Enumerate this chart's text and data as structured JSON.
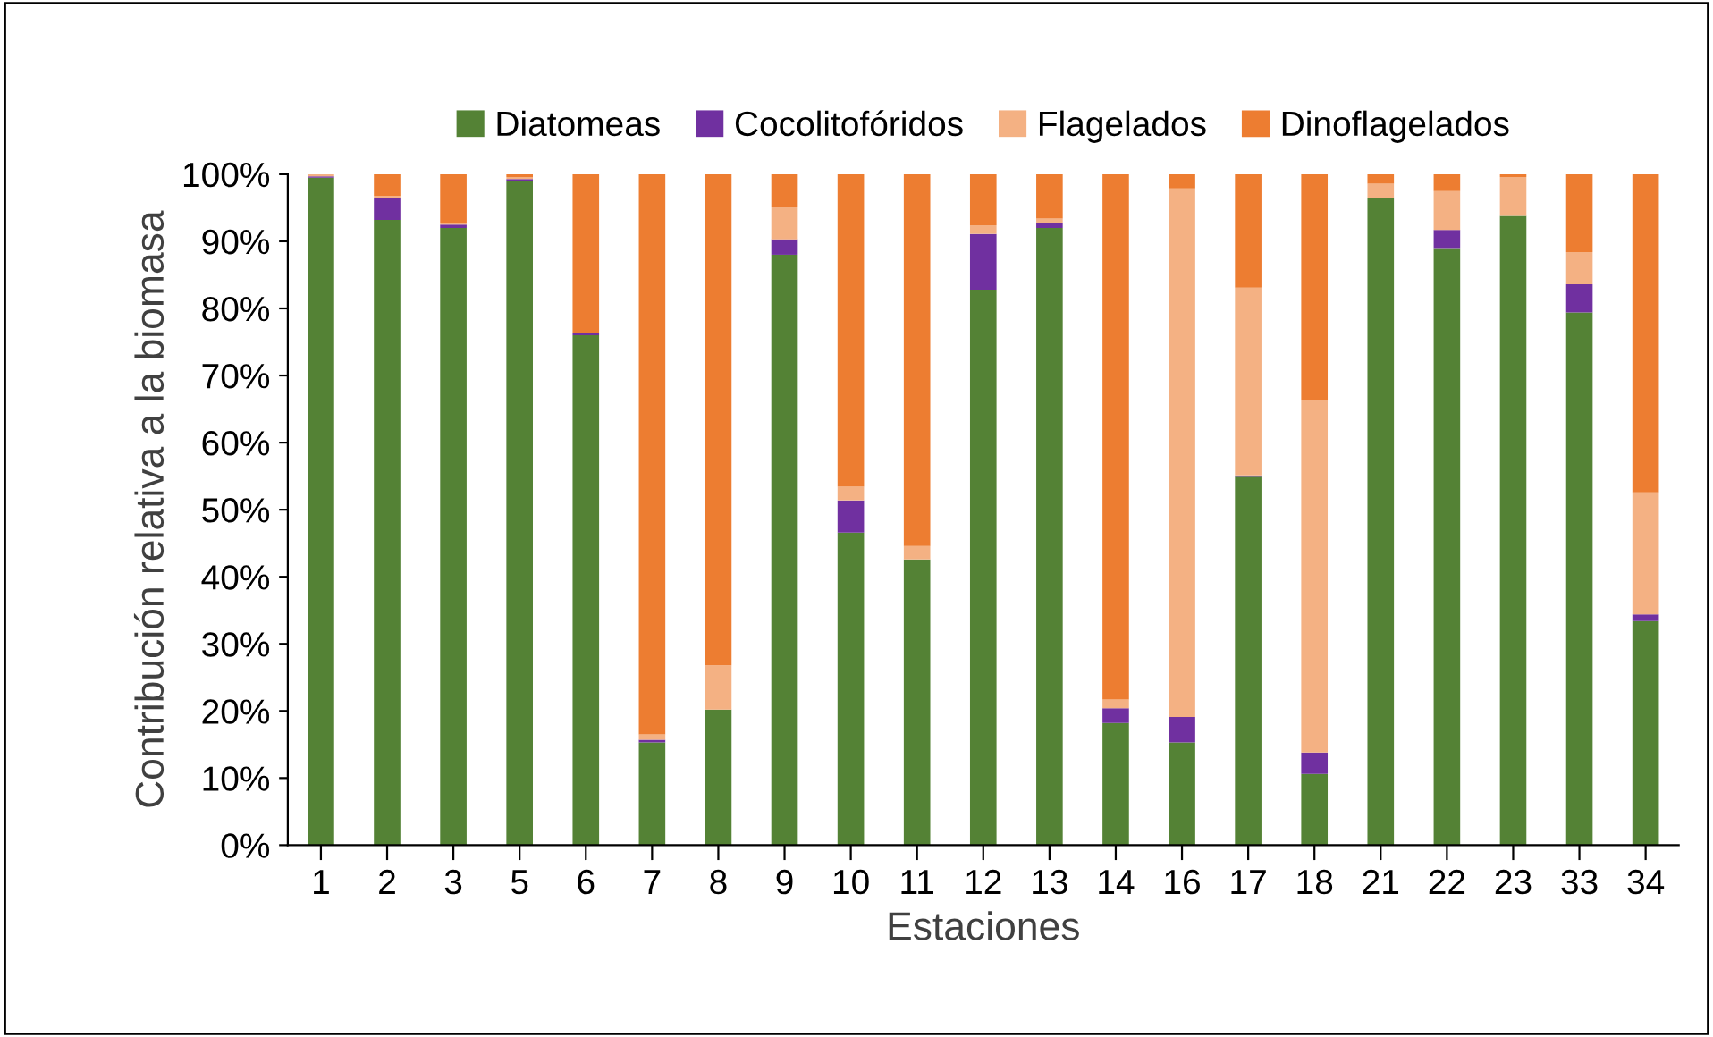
{
  "chart_data": {
    "type": "bar",
    "stacked": true,
    "xlabel": "Estaciones",
    "ylabel": "Contribución relativa a la biomasa",
    "categories": [
      "1",
      "2",
      "3",
      "5",
      "6",
      "7",
      "8",
      "9",
      "10",
      "11",
      "12",
      "13",
      "14",
      "16",
      "17",
      "18",
      "21",
      "22",
      "23",
      "33",
      "34"
    ],
    "series": [
      {
        "name": "Diatomeas",
        "color": "#548235",
        "values": [
          99.5,
          93.2,
          92,
          99,
          76,
          15.3,
          20.2,
          88,
          46.6,
          42.6,
          82.8,
          92,
          18.2,
          15.3,
          54.9,
          10.6,
          96.4,
          89,
          93.8,
          79.4,
          33.4
        ]
      },
      {
        "name": "Cocolitofóridos",
        "color": "#7030a0",
        "values": [
          0.2,
          3.3,
          0.5,
          0.3,
          0.3,
          0.4,
          0,
          2.3,
          4.8,
          0,
          8.3,
          0.7,
          2.2,
          3.8,
          0.2,
          3.2,
          0,
          2.7,
          0,
          4.2,
          1
        ]
      },
      {
        "name": "Flagelados",
        "color": "#f4b183",
        "values": [
          0.3,
          0.3,
          0.2,
          0.3,
          0,
          0.8,
          6.6,
          4.8,
          2,
          2,
          1.3,
          0.7,
          1.3,
          78.8,
          28,
          52.6,
          2.2,
          5.8,
          5.8,
          4.8,
          18.2
        ]
      },
      {
        "name": "Dinoflagelados",
        "color": "#ed7d31",
        "values": [
          0,
          3.2,
          7.3,
          0.4,
          23.7,
          83.5,
          73.2,
          4.9,
          46.6,
          55.4,
          7.6,
          6.6,
          78.3,
          2.1,
          16.9,
          33.6,
          1.4,
          2.5,
          0.4,
          11.6,
          47.4
        ]
      }
    ],
    "ylim": [
      0,
      100
    ],
    "yticks": [
      {
        "value": 0,
        "label": "0%"
      },
      {
        "value": 10,
        "label": "10%"
      },
      {
        "value": 20,
        "label": "20%"
      },
      {
        "value": 30,
        "label": "30%"
      },
      {
        "value": 40,
        "label": "40%"
      },
      {
        "value": 50,
        "label": "50%"
      },
      {
        "value": 60,
        "label": "60%"
      },
      {
        "value": 70,
        "label": "70%"
      },
      {
        "value": 80,
        "label": "80%"
      },
      {
        "value": 90,
        "label": "90%"
      },
      {
        "value": 100,
        "label": "100%"
      }
    ],
    "grid": false,
    "legend": "top"
  }
}
